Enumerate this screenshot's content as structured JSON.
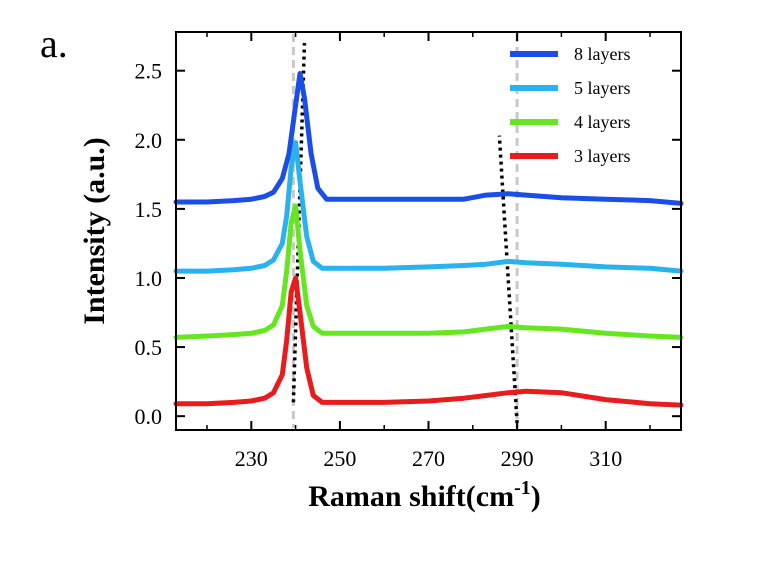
{
  "panel_label": "a.",
  "chart_data": {
    "type": "line",
    "xlabel_main": "Raman shift(cm",
    "xlabel_sup": "-1",
    "xlabel_end": ")",
    "ylabel": "Intensity (a.u.)",
    "xlim": [
      213,
      327
    ],
    "ylim": [
      -0.1,
      2.78
    ],
    "x_ticks": [
      230,
      250,
      270,
      290,
      310
    ],
    "x_tick_labels": [
      "230",
      "250",
      "270",
      "290",
      "310"
    ],
    "y_ticks": [
      0.0,
      0.5,
      1.0,
      1.5,
      2.0,
      2.5
    ],
    "y_tick_labels": [
      "0.0",
      "0.5",
      "1.0",
      "1.5",
      "2.0",
      "2.5"
    ],
    "legend_position": "top-right",
    "guides": {
      "gray_dashed_x": [
        239.5,
        290
      ],
      "black_dotted_1": [
        [
          239.5,
          0.1
        ],
        [
          242,
          2.7
        ]
      ],
      "black_dotted_2": [
        [
          290,
          -0.05
        ],
        [
          286,
          2.03
        ]
      ]
    },
    "series": [
      {
        "name": "8 layers",
        "color": "#1a4ee6",
        "x": [
          213,
          220,
          226,
          230,
          233,
          235,
          237,
          238.5,
          240,
          241,
          242,
          243.5,
          245,
          247,
          250,
          260,
          270,
          278,
          283,
          288,
          292,
          300,
          310,
          320,
          327
        ],
        "y": [
          1.55,
          1.55,
          1.56,
          1.57,
          1.59,
          1.62,
          1.72,
          1.9,
          2.25,
          2.48,
          2.3,
          1.9,
          1.65,
          1.57,
          1.57,
          1.57,
          1.57,
          1.57,
          1.6,
          1.61,
          1.6,
          1.58,
          1.57,
          1.56,
          1.54
        ]
      },
      {
        "name": "5 layers",
        "color": "#2ab2f0",
        "x": [
          213,
          220,
          226,
          230,
          233,
          235,
          237,
          238,
          239,
          240,
          241,
          242.5,
          244,
          246,
          250,
          260,
          270,
          278,
          283,
          288,
          292,
          300,
          310,
          320,
          327
        ],
        "y": [
          1.05,
          1.05,
          1.06,
          1.07,
          1.09,
          1.13,
          1.25,
          1.45,
          1.8,
          1.98,
          1.7,
          1.3,
          1.12,
          1.07,
          1.07,
          1.07,
          1.08,
          1.09,
          1.1,
          1.12,
          1.11,
          1.1,
          1.08,
          1.07,
          1.05
        ]
      },
      {
        "name": "4 layers",
        "color": "#66e620",
        "x": [
          213,
          220,
          226,
          230,
          233,
          235,
          237,
          238,
          239,
          240,
          241,
          242.5,
          244,
          246,
          250,
          260,
          270,
          278,
          283,
          288,
          292,
          300,
          310,
          320,
          327
        ],
        "y": [
          0.57,
          0.58,
          0.59,
          0.6,
          0.62,
          0.66,
          0.8,
          1.05,
          1.4,
          1.52,
          1.2,
          0.8,
          0.65,
          0.6,
          0.6,
          0.6,
          0.6,
          0.61,
          0.63,
          0.65,
          0.64,
          0.63,
          0.6,
          0.58,
          0.57
        ]
      },
      {
        "name": "3 layers",
        "color": "#e81c1c",
        "x": [
          213,
          220,
          226,
          230,
          233,
          235,
          237,
          238,
          239,
          240,
          241,
          242.5,
          244,
          246,
          250,
          260,
          270,
          278,
          283,
          288,
          292,
          300,
          310,
          320,
          327
        ],
        "y": [
          0.09,
          0.09,
          0.1,
          0.11,
          0.13,
          0.17,
          0.3,
          0.55,
          0.9,
          1.0,
          0.75,
          0.35,
          0.15,
          0.1,
          0.1,
          0.1,
          0.11,
          0.13,
          0.15,
          0.17,
          0.18,
          0.17,
          0.12,
          0.09,
          0.08
        ]
      }
    ]
  }
}
